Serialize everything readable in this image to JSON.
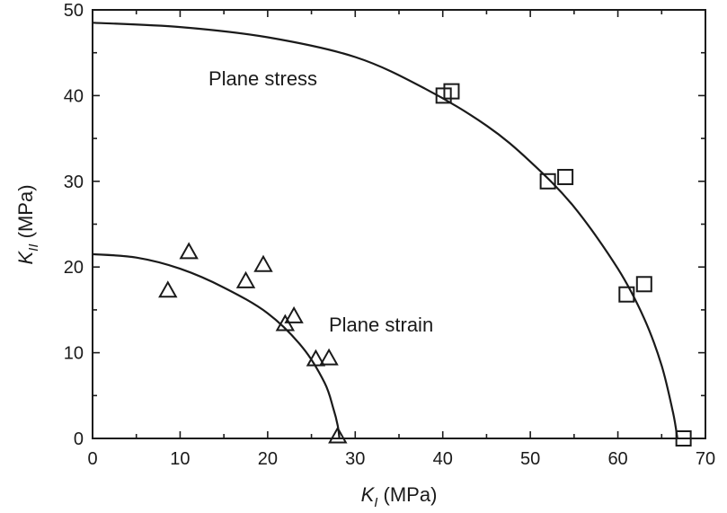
{
  "chart_data": {
    "type": "scatter",
    "xlabel": {
      "main": "K",
      "sub": "I",
      "unit": " (MPa)"
    },
    "ylabel": {
      "main": "K",
      "sub": "II",
      "unit": " (MPa)"
    },
    "xlim": [
      0,
      70
    ],
    "ylim": [
      0,
      50
    ],
    "xticks": [
      0,
      10,
      20,
      30,
      40,
      50,
      60,
      70
    ],
    "yticks": [
      0,
      10,
      20,
      30,
      40,
      50
    ],
    "grid": false,
    "legend": "none",
    "series": [
      {
        "marker": "square",
        "annotation": "Plane stress",
        "points": [
          {
            "x": 40.1,
            "y": 40.0
          },
          {
            "x": 41.0,
            "y": 40.5
          },
          {
            "x": 52.0,
            "y": 30.0
          },
          {
            "x": 54.0,
            "y": 30.5
          },
          {
            "x": 61.0,
            "y": 16.8
          },
          {
            "x": 63.0,
            "y": 18.0
          },
          {
            "x": 67.5,
            "y": 0.0
          }
        ],
        "curve": [
          {
            "x": 0,
            "y": 48.5
          },
          {
            "x": 10,
            "y": 48.0
          },
          {
            "x": 20,
            "y": 46.8
          },
          {
            "x": 30,
            "y": 44.5
          },
          {
            "x": 38,
            "y": 40.8
          },
          {
            "x": 45,
            "y": 36.5
          },
          {
            "x": 50,
            "y": 32.3
          },
          {
            "x": 55,
            "y": 27.0
          },
          {
            "x": 60,
            "y": 19.8
          },
          {
            "x": 63,
            "y": 14.0
          },
          {
            "x": 65,
            "y": 8.5
          },
          {
            "x": 66.3,
            "y": 3.0
          },
          {
            "x": 66.8,
            "y": 0.0
          }
        ]
      },
      {
        "marker": "triangle",
        "annotation": "Plane strain",
        "points": [
          {
            "x": 8.6,
            "y": 17.2
          },
          {
            "x": 11.0,
            "y": 21.7
          },
          {
            "x": 17.5,
            "y": 18.3
          },
          {
            "x": 19.5,
            "y": 20.2
          },
          {
            "x": 22.0,
            "y": 13.3
          },
          {
            "x": 23.0,
            "y": 14.2
          },
          {
            "x": 25.5,
            "y": 9.2
          },
          {
            "x": 27.0,
            "y": 9.3
          },
          {
            "x": 28.0,
            "y": 0.2
          }
        ],
        "curve": [
          {
            "x": 0,
            "y": 21.5
          },
          {
            "x": 5,
            "y": 21.1
          },
          {
            "x": 10,
            "y": 19.8
          },
          {
            "x": 15,
            "y": 17.6
          },
          {
            "x": 20,
            "y": 14.6
          },
          {
            "x": 24,
            "y": 10.6
          },
          {
            "x": 26.5,
            "y": 6.5
          },
          {
            "x": 27.5,
            "y": 3.5
          },
          {
            "x": 28.0,
            "y": 1.5
          },
          {
            "x": 28.2,
            "y": 0.0
          }
        ]
      }
    ]
  }
}
